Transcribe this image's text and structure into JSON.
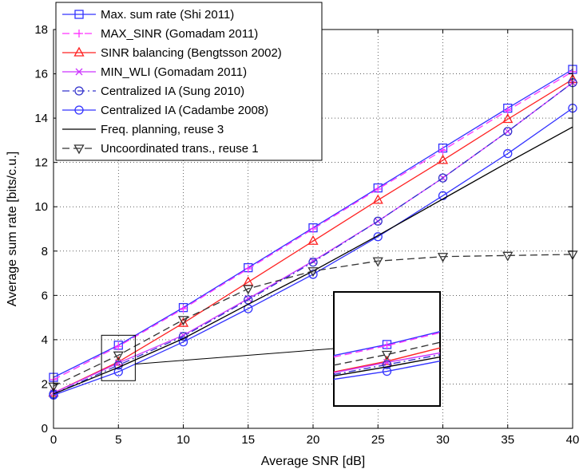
{
  "chart_data": {
    "type": "line",
    "xlabel": "Average SNR [dB]",
    "ylabel": "Average sum rate [bits/c.u.]",
    "xlim": [
      0,
      40
    ],
    "ylim": [
      0,
      18
    ],
    "xticks": [
      0,
      5,
      10,
      15,
      20,
      25,
      30,
      35,
      40
    ],
    "yticks": [
      0,
      2,
      4,
      6,
      8,
      10,
      12,
      14,
      16,
      18
    ],
    "grid": true,
    "legend_position": "top-left",
    "x": [
      0,
      5,
      10,
      15,
      20,
      25,
      30,
      35,
      40
    ],
    "series": [
      {
        "name": "Max. sum rate (Shi 2011)",
        "color": "#3333ff",
        "marker": "square",
        "dash": "solid",
        "values": [
          2.3,
          3.75,
          5.45,
          7.25,
          9.05,
          10.85,
          12.65,
          14.45,
          16.2
        ]
      },
      {
        "name": "MAX_SINR (Gomadam 2011)",
        "color": "#ff33ff",
        "marker": "plus",
        "dash": "dashed",
        "values": [
          2.2,
          3.7,
          5.4,
          7.2,
          9.0,
          10.8,
          12.55,
          14.35,
          16.1
        ]
      },
      {
        "name": "SINR balancing (Bengtsson 2002)",
        "color": "#ff2222",
        "marker": "triangle-up",
        "dash": "solid",
        "values": [
          1.6,
          3.0,
          4.75,
          6.6,
          8.45,
          10.3,
          12.1,
          13.95,
          15.75
        ]
      },
      {
        "name": "MIN_WLI (Gomadam 2011)",
        "color": "#cc33ff",
        "marker": "x",
        "dash": "solid",
        "values": [
          1.6,
          2.95,
          4.2,
          5.85,
          7.55,
          9.35,
          11.3,
          13.4,
          15.6
        ]
      },
      {
        "name": "Centralized IA (Sung 2010)",
        "color": "#3333cc",
        "marker": "circle",
        "dash": "dashdot",
        "values": [
          1.55,
          2.85,
          4.15,
          5.8,
          7.5,
          9.35,
          11.3,
          13.4,
          15.6
        ]
      },
      {
        "name": "Centralized IA (Cadambe 2008)",
        "color": "#3333ff",
        "marker": "circle",
        "dash": "solid",
        "values": [
          1.5,
          2.55,
          3.9,
          5.4,
          6.95,
          8.65,
          10.5,
          12.4,
          14.45
        ]
      },
      {
        "name": "Freq. planning, reuse 3",
        "color": "#000000",
        "marker": "none",
        "dash": "solid",
        "values": [
          1.55,
          2.75,
          4.05,
          5.6,
          7.1,
          8.7,
          10.35,
          12.0,
          13.6
        ]
      },
      {
        "name": "Uncoordinated trans., reuse 1",
        "color": "#333333",
        "marker": "triangle-down",
        "dash": "dashed",
        "values": [
          1.9,
          3.3,
          4.9,
          6.3,
          7.1,
          7.55,
          7.75,
          7.8,
          7.85
        ]
      }
    ],
    "inset": {
      "source_window": {
        "x": [
          3.7,
          6.3
        ],
        "y": [
          2.15,
          4.2
        ]
      },
      "zoom_segment": [
        3.3,
        6.7
      ],
      "zoom_yrange": [
        1.0,
        6.1
      ],
      "marker_x": 5
    }
  }
}
